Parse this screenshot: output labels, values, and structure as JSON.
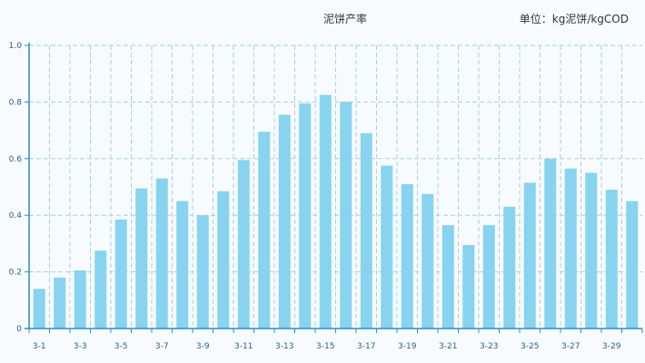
{
  "chart_data": {
    "type": "bar",
    "title": "泥饼产率",
    "unit_label": "单位：kg泥饼/kgCOD",
    "categories": [
      "3-1",
      "3-2",
      "3-3",
      "3-4",
      "3-5",
      "3-6",
      "3-7",
      "3-8",
      "3-9",
      "3-10",
      "3-11",
      "3-12",
      "3-13",
      "3-14",
      "3-15",
      "3-16",
      "3-17",
      "3-18",
      "3-19",
      "3-20",
      "3-21",
      "3-22",
      "3-23",
      "3-24",
      "3-25",
      "3-26",
      "3-27",
      "3-28",
      "3-29",
      "3-30"
    ],
    "x_tick_labels": [
      "3-1",
      "3-3",
      "3-5",
      "3-7",
      "3-9",
      "3-11",
      "3-13",
      "3-15",
      "3-17",
      "3-19",
      "3-21",
      "3-23",
      "3-25",
      "3-27",
      "3-29"
    ],
    "values": [
      0.14,
      0.18,
      0.205,
      0.275,
      0.385,
      0.495,
      0.53,
      0.45,
      0.4,
      0.485,
      0.595,
      0.695,
      0.755,
      0.795,
      0.825,
      0.8,
      0.69,
      0.575,
      0.51,
      0.475,
      0.365,
      0.295,
      0.365,
      0.43,
      0.515,
      0.6,
      0.565,
      0.55,
      0.49,
      0.45
    ],
    "y_ticks": [
      "0",
      "0.2",
      "0.4",
      "0.6",
      "0.8",
      "1.0"
    ],
    "ylim": [
      0,
      1.0
    ],
    "grid": true,
    "bar_color": "#87d3f0",
    "axis_color": "#2a8fc5",
    "grid_color": "#a9cfe2"
  }
}
